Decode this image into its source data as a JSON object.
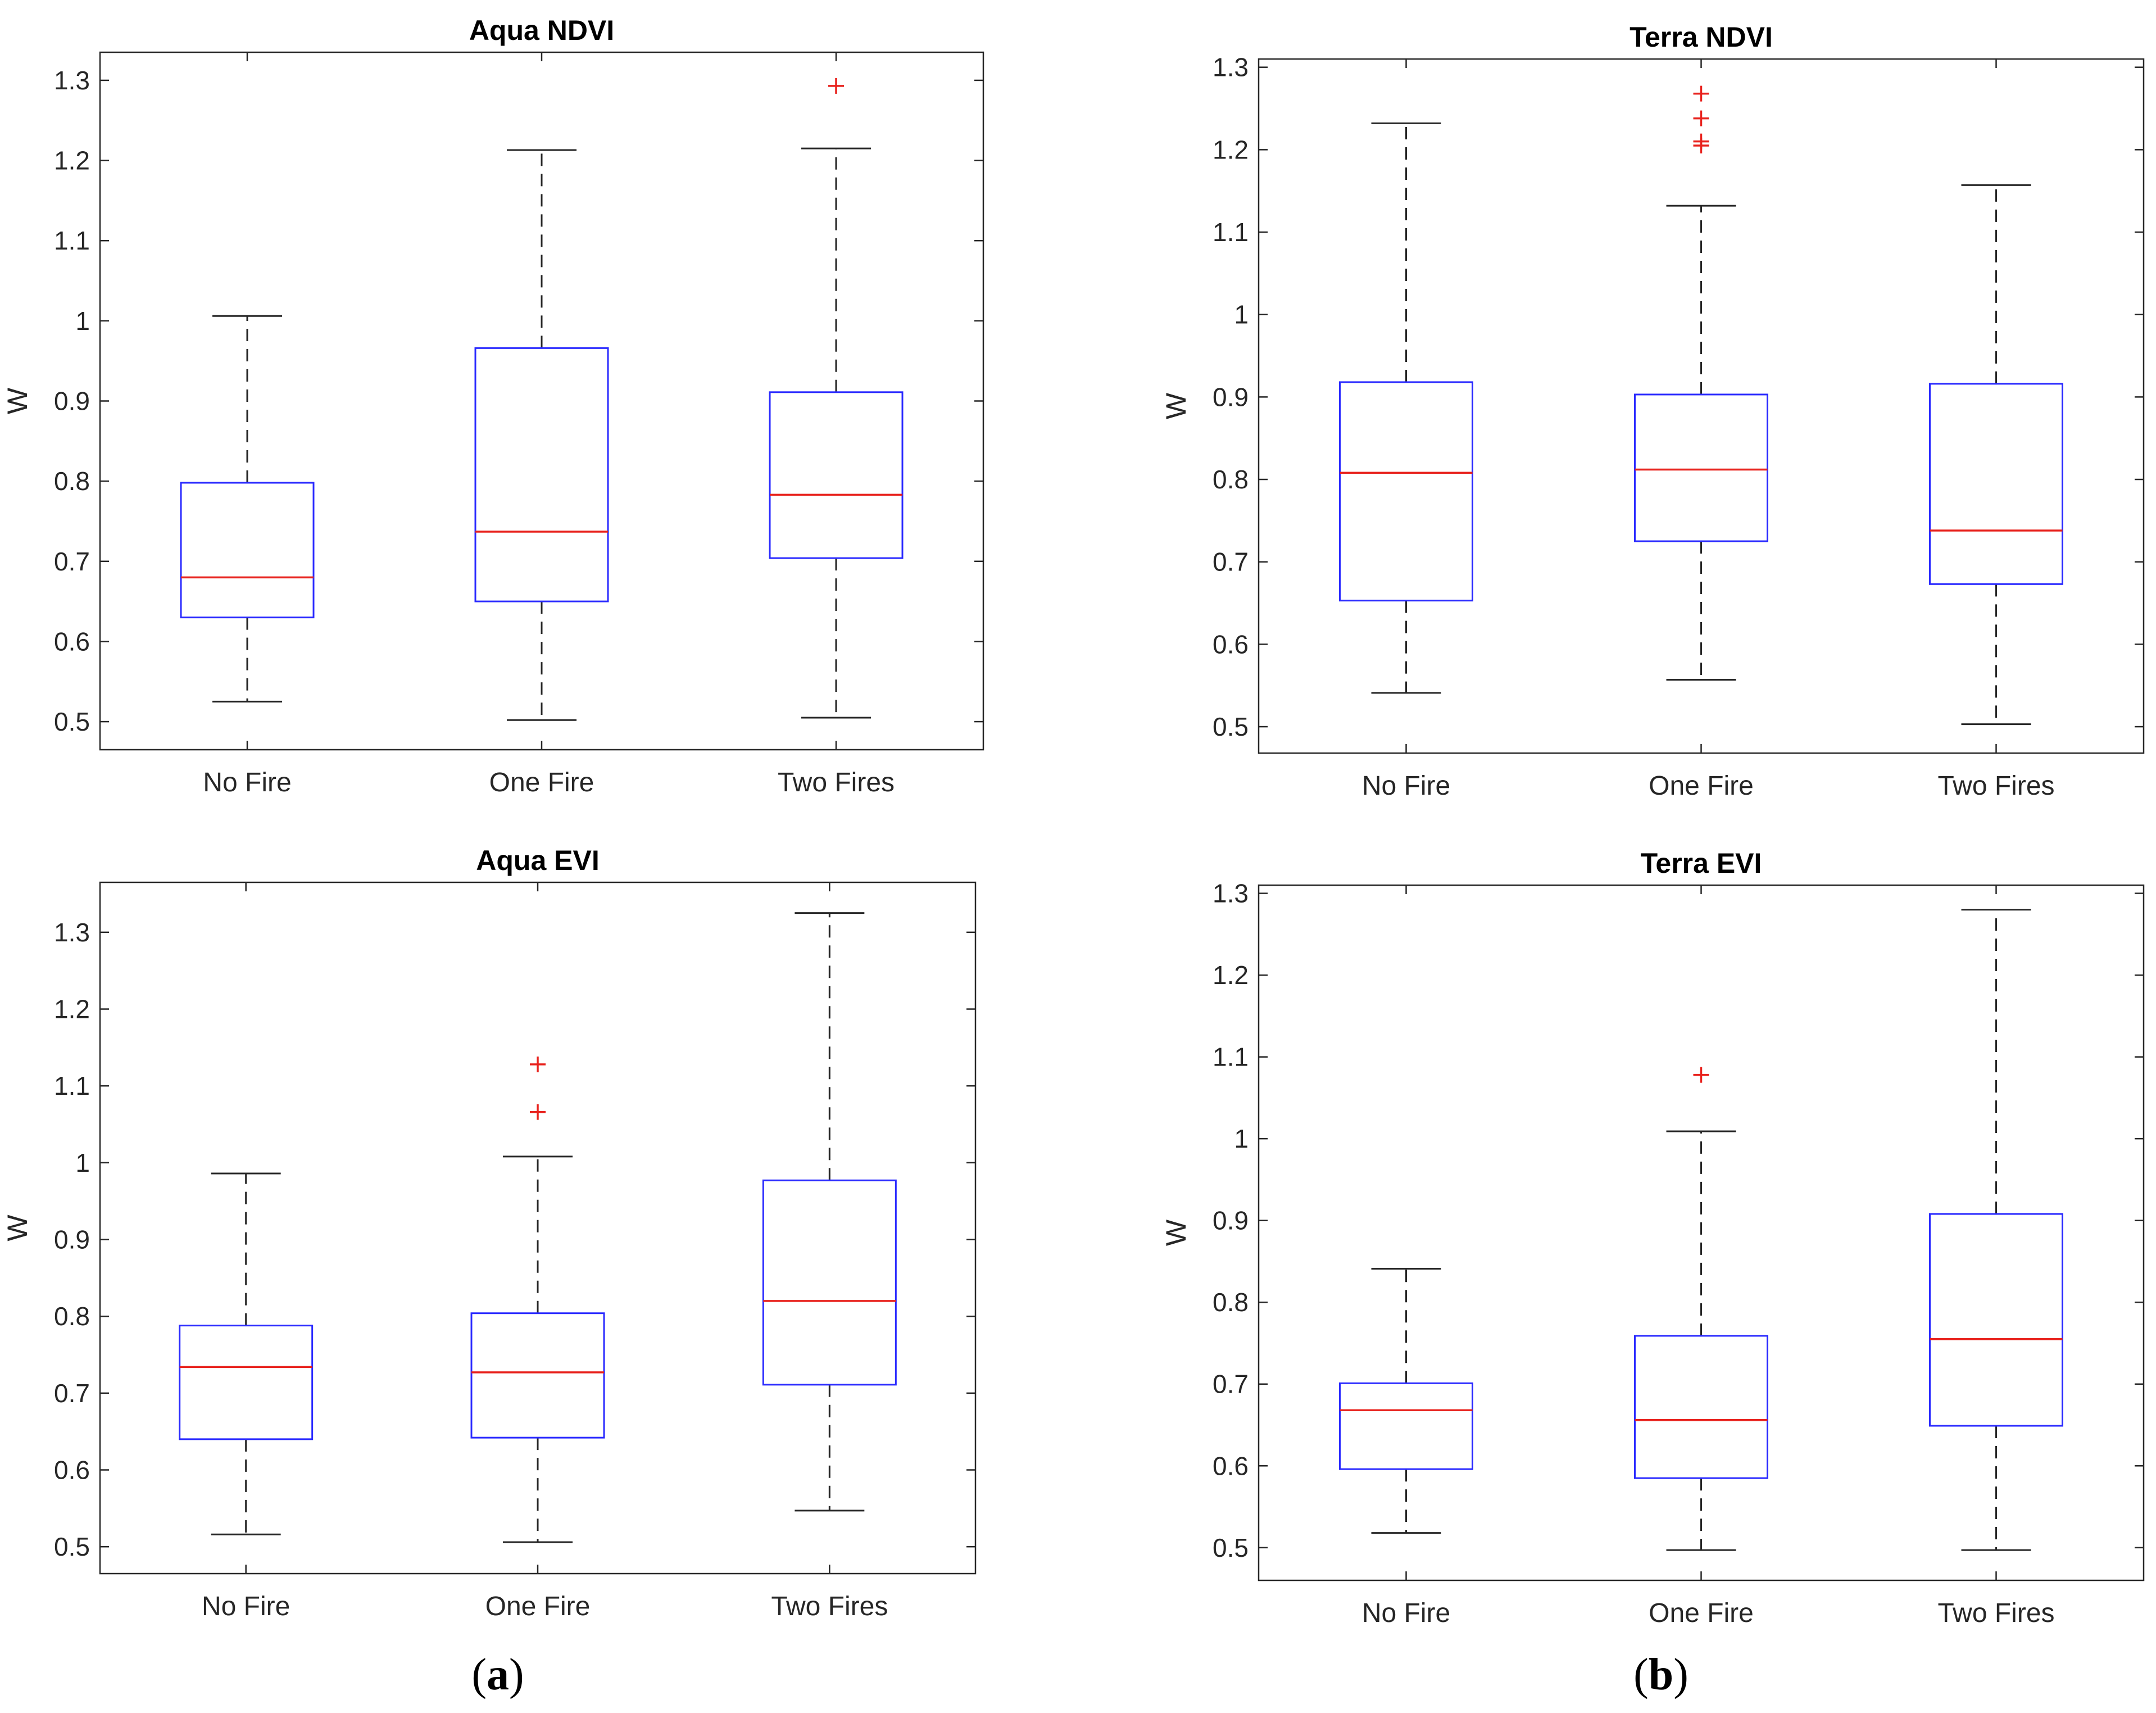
{
  "panel_labels": {
    "a": "a",
    "b": "b"
  },
  "chart_data": [
    {
      "type": "boxplot",
      "title": "Aqua NDVI",
      "xlabel": "",
      "ylabel": "W",
      "categories": [
        "No Fire",
        "One Fire",
        "Two Fires"
      ],
      "ylim": [
        0.465,
        1.335
      ],
      "yticks": [
        0.5,
        0.6,
        0.7,
        0.8,
        0.9,
        1,
        1.1,
        1.2,
        1.3
      ],
      "ytick_labels": [
        "0.5",
        "0.6",
        "0.7",
        "0.8",
        "0.9",
        "1",
        "1.1",
        "1.2",
        "1.3"
      ],
      "boxes": [
        {
          "whisker_low": 0.525,
          "q1": 0.63,
          "median": 0.68,
          "q3": 0.798,
          "whisker_high": 1.006,
          "outliers": []
        },
        {
          "whisker_low": 0.502,
          "q1": 0.65,
          "median": 0.737,
          "q3": 0.966,
          "whisker_high": 1.213,
          "outliers": []
        },
        {
          "whisker_low": 0.505,
          "q1": 0.704,
          "median": 0.783,
          "q3": 0.911,
          "whisker_high": 1.215,
          "outliers": [
            1.293
          ]
        }
      ]
    },
    {
      "type": "boxplot",
      "title": "Terra NDVI",
      "xlabel": "",
      "ylabel": "W",
      "categories": [
        "No Fire",
        "One Fire",
        "Two Fires"
      ],
      "ylim": [
        0.468,
        1.31
      ],
      "yticks": [
        0.5,
        0.6,
        0.7,
        0.8,
        0.9,
        1,
        1.1,
        1.2,
        1.3
      ],
      "ytick_labels": [
        "0.5",
        "0.6",
        "0.7",
        "0.8",
        "0.9",
        "1",
        "1.1",
        "1.2",
        "1.3"
      ],
      "boxes": [
        {
          "whisker_low": 0.541,
          "q1": 0.653,
          "median": 0.808,
          "q3": 0.918,
          "whisker_high": 1.232,
          "outliers": []
        },
        {
          "whisker_low": 0.557,
          "q1": 0.725,
          "median": 0.812,
          "q3": 0.903,
          "whisker_high": 1.132,
          "outliers": [
            1.205,
            1.21,
            1.238,
            1.268
          ]
        },
        {
          "whisker_low": 0.503,
          "q1": 0.673,
          "median": 0.738,
          "q3": 0.916,
          "whisker_high": 1.157,
          "outliers": []
        }
      ]
    },
    {
      "type": "boxplot",
      "title": "Aqua EVI",
      "xlabel": "",
      "ylabel": "W",
      "categories": [
        "No Fire",
        "One Fire",
        "Two Fires"
      ],
      "ylim": [
        0.465,
        1.365
      ],
      "yticks": [
        0.5,
        0.6,
        0.7,
        0.8,
        0.9,
        1,
        1.1,
        1.2,
        1.3
      ],
      "ytick_labels": [
        "0.5",
        "0.6",
        "0.7",
        "0.8",
        "0.9",
        "1",
        "1.1",
        "1.2",
        "1.3"
      ],
      "boxes": [
        {
          "whisker_low": 0.516,
          "q1": 0.64,
          "median": 0.734,
          "q3": 0.788,
          "whisker_high": 0.986,
          "outliers": []
        },
        {
          "whisker_low": 0.506,
          "q1": 0.642,
          "median": 0.727,
          "q3": 0.804,
          "whisker_high": 1.008,
          "outliers": [
            1.066,
            1.128
          ]
        },
        {
          "whisker_low": 0.547,
          "q1": 0.711,
          "median": 0.82,
          "q3": 0.977,
          "whisker_high": 1.325,
          "outliers": []
        }
      ]
    },
    {
      "type": "boxplot",
      "title": "Terra EVI",
      "xlabel": "",
      "ylabel": "W",
      "categories": [
        "No Fire",
        "One Fire",
        "Two Fires"
      ],
      "ylim": [
        0.46,
        1.31
      ],
      "yticks": [
        0.5,
        0.6,
        0.7,
        0.8,
        0.9,
        1,
        1.1,
        1.2,
        1.3
      ],
      "ytick_labels": [
        "0.5",
        "0.6",
        "0.7",
        "0.8",
        "0.9",
        "1",
        "1.1",
        "1.2",
        "1.3"
      ],
      "boxes": [
        {
          "whisker_low": 0.518,
          "q1": 0.596,
          "median": 0.668,
          "q3": 0.701,
          "whisker_high": 0.841,
          "outliers": []
        },
        {
          "whisker_low": 0.497,
          "q1": 0.585,
          "median": 0.656,
          "q3": 0.759,
          "whisker_high": 1.009,
          "outliers": [
            1.078
          ]
        },
        {
          "whisker_low": 0.497,
          "q1": 0.649,
          "median": 0.755,
          "q3": 0.908,
          "whisker_high": 1.28,
          "outliers": []
        }
      ]
    }
  ]
}
